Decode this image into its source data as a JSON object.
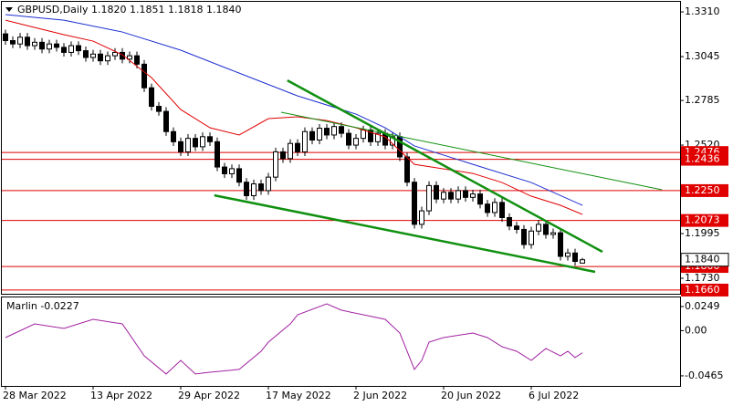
{
  "chart_data": [
    {
      "type": "candlestick",
      "title": "GBPUSD,Daily  1.1820 1.1851 1.1818 1.1840",
      "ylim": [
        1.1638,
        1.337
      ],
      "yticks": [
        {
          "value": 1.331,
          "label": "1.3310"
        },
        1.3045,
        1.2785,
        {
          "value": 1.252,
          "label": "1.2520"
        },
        1.1995,
        {
          "value": 1.173,
          "label": "1.1730"
        }
      ],
      "xticks": [
        {
          "value": 0,
          "label": "28 Mar 2022"
        },
        {
          "value": 12,
          "label": "13 Apr 2022"
        },
        {
          "value": 24,
          "label": "29 Apr 2022"
        },
        {
          "value": 36,
          "label": "17 May 2022"
        },
        {
          "value": 48,
          "label": "2 Jun 2022"
        },
        {
          "value": 60,
          "label": "20 Jun 2022"
        },
        {
          "value": 72,
          "label": "6 Jul 2022"
        }
      ],
      "levels": [
        1.2476,
        1.2436,
        {
          "value": 1.225,
          "label": "1.2250"
        },
        1.2073,
        {
          "value": 1.18,
          "label": "1.1800"
        },
        {
          "value": 1.166,
          "label": "1.1660"
        }
      ],
      "level_color": "#e00000",
      "current_price": {
        "value": 1.184,
        "label": "1.1840"
      },
      "candles": [
        [
          1.318,
          1.3205,
          1.3115,
          1.314
        ],
        [
          1.314,
          1.3165,
          1.3095,
          1.312
        ],
        [
          1.312,
          1.3185,
          1.3095,
          1.316
        ],
        [
          1.316,
          1.3185,
          1.3085,
          1.311
        ],
        [
          1.311,
          1.3155,
          1.3085,
          1.313
        ],
        [
          1.313,
          1.3155,
          1.3065,
          1.309
        ],
        [
          1.309,
          1.3145,
          1.3065,
          1.312
        ],
        [
          1.312,
          1.3145,
          1.3075,
          1.31
        ],
        [
          1.31,
          1.3125,
          1.3045,
          1.307
        ],
        [
          1.307,
          1.3135,
          1.3045,
          1.311
        ],
        [
          1.311,
          1.3135,
          1.3055,
          1.308
        ],
        [
          1.308,
          1.3105,
          1.3015,
          1.304
        ],
        [
          1.304,
          1.3085,
          1.3015,
          1.306
        ],
        [
          1.306,
          1.3085,
          1.2995,
          1.302
        ],
        [
          1.302,
          1.3075,
          1.2995,
          1.305
        ],
        [
          1.305,
          1.3095,
          1.3025,
          1.307
        ],
        [
          1.307,
          1.3095,
          1.3005,
          1.303
        ],
        [
          1.303,
          1.3075,
          1.3005,
          1.305
        ],
        [
          1.305,
          1.3075,
          1.2975,
          1.3
        ],
        [
          1.3,
          1.3025,
          1.2835,
          1.286
        ],
        [
          1.286,
          1.2885,
          1.2725,
          1.275
        ],
        [
          1.275,
          1.2775,
          1.2695,
          1.272
        ],
        [
          1.272,
          1.2745,
          1.2575,
          1.26
        ],
        [
          1.26,
          1.2625,
          1.2515,
          1.254
        ],
        [
          1.254,
          1.2565,
          1.2455,
          1.248
        ],
        [
          1.248,
          1.2585,
          1.2455,
          1.256
        ],
        [
          1.256,
          1.2585,
          1.2485,
          1.251
        ],
        [
          1.251,
          1.2595,
          1.2485,
          1.257
        ],
        [
          1.257,
          1.2595,
          1.2515,
          1.254
        ],
        [
          1.254,
          1.2565,
          1.2365,
          1.239
        ],
        [
          1.239,
          1.2415,
          1.2325,
          1.235
        ],
        [
          1.235,
          1.2405,
          1.2325,
          1.238
        ],
        [
          1.238,
          1.2405,
          1.2275,
          1.23
        ],
        [
          1.23,
          1.2325,
          1.2195,
          1.222
        ],
        [
          1.222,
          1.2315,
          1.2195,
          1.229
        ],
        [
          1.229,
          1.2315,
          1.2225,
          1.225
        ],
        [
          1.225,
          1.2355,
          1.2225,
          1.233
        ],
        [
          1.233,
          1.2505,
          1.2305,
          1.248
        ],
        [
          1.248,
          1.2505,
          1.2415,
          1.244
        ],
        [
          1.244,
          1.2555,
          1.2415,
          1.253
        ],
        [
          1.253,
          1.2555,
          1.2455,
          1.248
        ],
        [
          1.248,
          1.2625,
          1.2455,
          1.26
        ],
        [
          1.26,
          1.2625,
          1.2525,
          1.255
        ],
        [
          1.255,
          1.2645,
          1.2525,
          1.262
        ],
        [
          1.262,
          1.2645,
          1.2555,
          1.258
        ],
        [
          1.258,
          1.2655,
          1.2555,
          1.263
        ],
        [
          1.263,
          1.2655,
          1.2565,
          1.259
        ],
        [
          1.259,
          1.2615,
          1.2495,
          1.252
        ],
        [
          1.252,
          1.2585,
          1.2495,
          1.256
        ],
        [
          1.256,
          1.2635,
          1.2535,
          1.261
        ],
        [
          1.261,
          1.2635,
          1.2515,
          1.254
        ],
        [
          1.254,
          1.2615,
          1.2515,
          1.259
        ],
        [
          1.259,
          1.2615,
          1.2495,
          1.252
        ],
        [
          1.252,
          1.2595,
          1.2495,
          1.257
        ],
        [
          1.257,
          1.2595,
          1.2425,
          1.245
        ],
        [
          1.245,
          1.2475,
          1.2275,
          1.23
        ],
        [
          1.23,
          1.2325,
          1.2025,
          1.205
        ],
        [
          1.205,
          1.2155,
          1.2025,
          1.213
        ],
        [
          1.213,
          1.2305,
          1.2105,
          1.228
        ],
        [
          1.228,
          1.2305,
          1.2175,
          1.22
        ],
        [
          1.22,
          1.2265,
          1.2175,
          1.224
        ],
        [
          1.224,
          1.2265,
          1.2175,
          1.22
        ],
        [
          1.22,
          1.2275,
          1.2175,
          1.225
        ],
        [
          1.225,
          1.2275,
          1.2185,
          1.221
        ],
        [
          1.221,
          1.2255,
          1.2185,
          1.223
        ],
        [
          1.223,
          1.2255,
          1.2145,
          1.217
        ],
        [
          1.217,
          1.2195,
          1.2095,
          1.212
        ],
        [
          1.212,
          1.2205,
          1.2095,
          1.218
        ],
        [
          1.218,
          1.2205,
          1.2065,
          1.209
        ],
        [
          1.209,
          1.2115,
          1.2015,
          1.204
        ],
        [
          1.204,
          1.2065,
          1.1995,
          1.202
        ],
        [
          1.202,
          1.2045,
          1.1905,
          1.193
        ],
        [
          1.193,
          1.2035,
          1.1905,
          1.201
        ],
        [
          1.201,
          1.2075,
          1.1985,
          1.205
        ],
        [
          1.205,
          1.2075,
          1.1965,
          1.199
        ],
        [
          1.199,
          1.2025,
          1.1965,
          1.2
        ],
        [
          1.2,
          1.2025,
          1.1835,
          1.186
        ],
        [
          1.186,
          1.1905,
          1.1835,
          1.188
        ],
        [
          1.188,
          1.1905,
          1.1805,
          1.183
        ],
        [
          1.182,
          1.1851,
          1.1818,
          1.184
        ]
      ],
      "lines": [
        {
          "color": "#e00000",
          "x": [
            0,
            4,
            8,
            12,
            16,
            20,
            24,
            28,
            32,
            36,
            40,
            44,
            48,
            52,
            56,
            60,
            64,
            68,
            72,
            76,
            79
          ],
          "values": [
            1.3261,
            1.3218,
            1.3175,
            1.3137,
            1.3056,
            1.292,
            1.2731,
            1.2623,
            1.258,
            1.2677,
            1.2688,
            1.2666,
            1.2623,
            1.2569,
            1.2406,
            1.2379,
            1.2352,
            1.2298,
            1.2217,
            1.2163,
            1.2109
          ]
        },
        {
          "color": "#1c2fd0",
          "x": [
            0,
            8,
            16,
            24,
            32,
            40,
            48,
            52,
            56,
            64,
            72,
            79
          ],
          "values": [
            1.3294,
            1.3261,
            1.3191,
            1.3083,
            1.2947,
            1.2812,
            1.2704,
            1.2623,
            1.2515,
            1.2406,
            1.2298,
            1.2163
          ]
        }
      ],
      "trendlines": [
        {
          "color": "#109010",
          "style": "thick",
          "x": [
            38.6,
            81.75
          ],
          "values": [
            1.2904,
            1.1887
          ]
        },
        {
          "color": "#109010",
          "style": "thick",
          "x": [
            28.6,
            80.75
          ],
          "values": [
            1.2222,
            1.1768
          ]
        },
        {
          "color": "#109010",
          "style": "thin",
          "x": [
            37.75,
            89.9
          ],
          "values": [
            1.2715,
            1.2255
          ]
        }
      ]
    },
    {
      "type": "line",
      "title": "Marlin -0.0227",
      "ylim": [
        -0.0569,
        0.0352
      ],
      "yticks": [
        0.0249,
        {
          "value": 0,
          "label": "0.00"
        },
        -0.0465
      ],
      "series": [
        {
          "color": "#a020a0",
          "x": [
            0,
            4,
            8,
            12,
            16,
            19,
            22,
            24,
            26,
            28,
            32,
            35,
            36,
            39,
            40,
            44,
            46,
            49,
            52,
            54,
            56,
            57,
            58,
            60,
            64,
            66,
            68,
            70,
            72,
            74,
            76,
            77,
            78,
            79
          ],
          "values": [
            -0.0071,
            0.007,
            0.0023,
            0.0117,
            0.007,
            -0.0259,
            -0.0446,
            -0.0306,
            -0.0446,
            -0.0428,
            -0.0399,
            -0.0212,
            -0.0118,
            0.007,
            0.0164,
            0.0277,
            0.0211,
            0.0164,
            0.0117,
            -0.0024,
            -0.0399,
            -0.0306,
            -0.0118,
            -0.0071,
            -0.0024,
            -0.0071,
            -0.0165,
            -0.0212,
            -0.0306,
            -0.0183,
            -0.0259,
            -0.0212,
            -0.0277,
            -0.0227
          ]
        }
      ]
    }
  ]
}
